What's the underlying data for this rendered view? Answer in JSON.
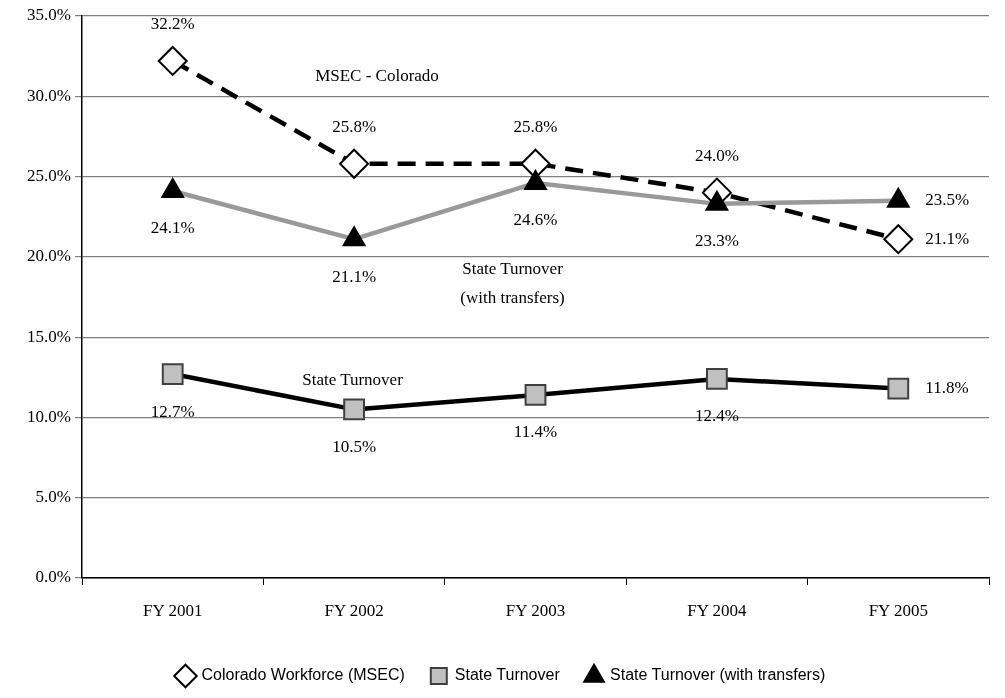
{
  "chart_data": {
    "type": "line",
    "categories": [
      "FY 2001",
      "FY 2002",
      "FY 2003",
      "FY 2004",
      "FY 2005"
    ],
    "series": [
      {
        "name": "Colorado Workforce (MSEC)",
        "color": "#000000",
        "marker": "diamond",
        "line_style": "dashed",
        "values": [
          32.2,
          25.8,
          25.8,
          24.0,
          21.1
        ],
        "value_labels": [
          "32.2%",
          "25.8%",
          "25.8%",
          "24.0%",
          "21.1%"
        ]
      },
      {
        "name": "State Turnover",
        "color": "#000000",
        "marker": "square",
        "line_style": "solid",
        "values": [
          12.7,
          10.5,
          11.4,
          12.4,
          11.8
        ],
        "value_labels": [
          "12.7%",
          "10.5%",
          "11.4%",
          "12.4%",
          "11.8%"
        ]
      },
      {
        "name": "State Turnover (with transfers)",
        "color": "#999999",
        "marker": "triangle",
        "line_style": "solid",
        "values": [
          24.1,
          21.1,
          24.6,
          23.3,
          23.5
        ],
        "value_labels": [
          "24.1%",
          "21.1%",
          "24.6%",
          "23.3%",
          "23.5%"
        ]
      }
    ],
    "ylim": [
      0,
      35
    ],
    "yticks": [
      {
        "value": 0,
        "label": "0.0%"
      },
      {
        "value": 5,
        "label": "5.0%"
      },
      {
        "value": 10,
        "label": "10.0%"
      },
      {
        "value": 15,
        "label": "15.0%"
      },
      {
        "value": 20,
        "label": "20.0%"
      },
      {
        "value": 25,
        "label": "25.0%"
      },
      {
        "value": 30,
        "label": "30.0%"
      },
      {
        "value": 35,
        "label": "35.0%"
      }
    ],
    "grid": "y",
    "legend": "bottom",
    "annotations": [
      "MSEC - Colorado",
      "State Turnover (with transfers)",
      "State Turnover"
    ]
  }
}
